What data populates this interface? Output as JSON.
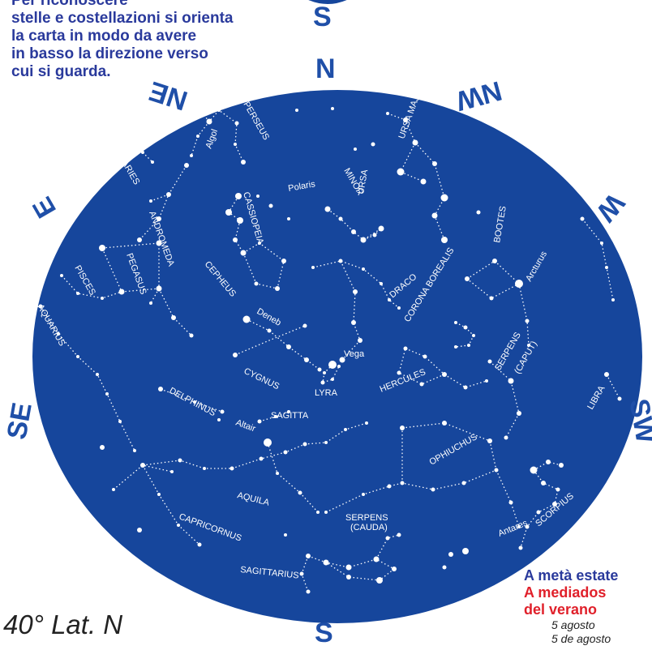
{
  "intro_text": [
    "Per riconoscere",
    "stelle e costellazioni si orienta",
    "la carta in modo da avere",
    "in basso la direzione verso",
    "cui si guarda."
  ],
  "directions": {
    "top_s": "S",
    "n": "N",
    "ne": "NE",
    "nw": "NW",
    "e": "E",
    "w": "W",
    "se": "SE",
    "sw": "SW",
    "bottom_s": "S"
  },
  "colors": {
    "sky": "#16469c",
    "star": "#ffffff",
    "direction": "#1f4fa8",
    "intro": "#2a3a9c",
    "accent_red": "#e0202a"
  },
  "latitude": "40° Lat. N",
  "legend": {
    "line1": "A metà estate",
    "line2a": "A mediados",
    "line2b": "del verano",
    "date1": "5 agosto",
    "date2": "5 de agosto"
  },
  "labels": {
    "perseus": "PERSEUS",
    "algol": "Algol",
    "aries": "ARIES",
    "cassiopeia": "CASSIOPEIA",
    "polaris": "Polaris",
    "ursa_minor_1": "URSA",
    "ursa_minor_2": "MINOR",
    "ursa_major": "URSA MAJOR",
    "andromeda": "ANDROMEDA",
    "pegasus": "PEGASUS",
    "pisces": "PISCES",
    "cepheus": "CEPHEUS",
    "draco": "DRACO",
    "bootes": "BOOTES",
    "arcturus": "Arcturus",
    "corona_borealis": "CORONA BOREALIS",
    "deneb": "Deneb",
    "aquarius": "AQUARIUS",
    "vega": "Vega",
    "lyra": "LYRA",
    "cygnus": "CYGNUS",
    "hercules": "HERCULES",
    "serpens_caput_1": "SERPENS",
    "serpens_caput_2": "(CAPUT)",
    "libra": "LIBRA",
    "delphinus": "DELPHINUS",
    "sagitta": "SAGITTA",
    "altair": "Altair",
    "ophiuchus": "OPHIUCHUS",
    "aquila": "AQUILA",
    "scorpius": "SCORPIUS",
    "antares": "Antares",
    "serpens_cauda_1": "SERPENS",
    "serpens_cauda_2": "(CAUDA)",
    "capricornus": "CAPRICORNUS",
    "sagittarius": "SAGITTARIUS"
  }
}
